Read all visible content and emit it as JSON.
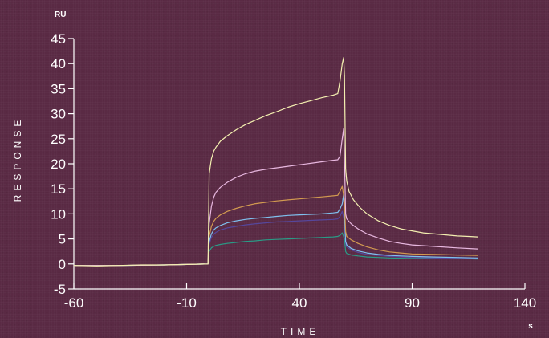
{
  "chart_data": {
    "type": "line",
    "y_unit": "RU",
    "x_unit": "s",
    "xlabel": "TIME",
    "ylabel": "RESPONSE",
    "xlim": [
      -60,
      140
    ],
    "ylim": [
      -5,
      45
    ],
    "x_ticks": [
      "-60",
      "-10",
      "40",
      "90",
      "140"
    ],
    "y_ticks": [
      "-5",
      "0",
      "5",
      "10",
      "15",
      "20",
      "25",
      "30",
      "35",
      "40",
      "45"
    ],
    "grid": false,
    "series": [
      {
        "color": "#f3efb0",
        "points": [
          [
            -60,
            -0.3
          ],
          [
            -50,
            -0.4
          ],
          [
            -40,
            -0.3
          ],
          [
            -30,
            -0.2
          ],
          [
            -20,
            -0.2
          ],
          [
            -10,
            -0.1
          ],
          [
            -0.5,
            0
          ],
          [
            0,
            18
          ],
          [
            1,
            21
          ],
          [
            2,
            22.5
          ],
          [
            3,
            23.3
          ],
          [
            5,
            24.5
          ],
          [
            8,
            25.6
          ],
          [
            12,
            26.8
          ],
          [
            16,
            27.8
          ],
          [
            20,
            28.6
          ],
          [
            25,
            29.6
          ],
          [
            30,
            30.4
          ],
          [
            35,
            31.3
          ],
          [
            40,
            32
          ],
          [
            45,
            32.6
          ],
          [
            50,
            33.2
          ],
          [
            55,
            33.7
          ],
          [
            57,
            34
          ],
          [
            58,
            36.5
          ],
          [
            59,
            40
          ],
          [
            59.6,
            41.2
          ],
          [
            60,
            37.5
          ],
          [
            60.5,
            19
          ],
          [
            61,
            16.5
          ],
          [
            62,
            14.5
          ],
          [
            64,
            12.8
          ],
          [
            67,
            11.2
          ],
          [
            70,
            10
          ],
          [
            75,
            8.6
          ],
          [
            80,
            7.7
          ],
          [
            85,
            7
          ],
          [
            90,
            6.6
          ],
          [
            95,
            6.2
          ],
          [
            100,
            6
          ],
          [
            105,
            5.8
          ],
          [
            110,
            5.6
          ],
          [
            115,
            5.5
          ],
          [
            119,
            5.4
          ]
        ]
      },
      {
        "color": "#e8b8e0",
        "points": [
          [
            -60,
            -0.3
          ],
          [
            -40,
            -0.3
          ],
          [
            -20,
            -0.2
          ],
          [
            -0.5,
            0
          ],
          [
            0,
            8
          ],
          [
            1,
            11.5
          ],
          [
            2,
            13.3
          ],
          [
            3,
            14.3
          ],
          [
            5,
            15.3
          ],
          [
            8,
            16.3
          ],
          [
            12,
            17.3
          ],
          [
            16,
            18
          ],
          [
            20,
            18.5
          ],
          [
            25,
            18.9
          ],
          [
            30,
            19.2
          ],
          [
            35,
            19.5
          ],
          [
            40,
            19.8
          ],
          [
            45,
            20.1
          ],
          [
            50,
            20.4
          ],
          [
            55,
            20.7
          ],
          [
            57,
            20.8
          ],
          [
            58,
            21.5
          ],
          [
            59,
            25
          ],
          [
            59.6,
            27
          ],
          [
            60,
            21
          ],
          [
            60.5,
            10
          ],
          [
            61,
            9
          ],
          [
            63,
            8
          ],
          [
            66,
            7
          ],
          [
            70,
            6
          ],
          [
            75,
            5.2
          ],
          [
            80,
            4.5
          ],
          [
            85,
            4.1
          ],
          [
            90,
            3.8
          ],
          [
            100,
            3.5
          ],
          [
            110,
            3.2
          ],
          [
            119,
            3
          ]
        ]
      },
      {
        "color": "#d29a50",
        "points": [
          [
            -60,
            -0.3
          ],
          [
            -40,
            -0.3
          ],
          [
            -20,
            -0.2
          ],
          [
            -0.5,
            0
          ],
          [
            0,
            5.5
          ],
          [
            1,
            7.5
          ],
          [
            2,
            8.5
          ],
          [
            3,
            9.1
          ],
          [
            5,
            9.8
          ],
          [
            8,
            10.5
          ],
          [
            12,
            11.1
          ],
          [
            16,
            11.6
          ],
          [
            20,
            12
          ],
          [
            25,
            12.3
          ],
          [
            30,
            12.6
          ],
          [
            35,
            12.8
          ],
          [
            40,
            13
          ],
          [
            45,
            13.2
          ],
          [
            50,
            13.4
          ],
          [
            55,
            13.6
          ],
          [
            57,
            13.7
          ],
          [
            58,
            14.5
          ],
          [
            59,
            15.5
          ],
          [
            60,
            12.5
          ],
          [
            60.5,
            6.5
          ],
          [
            61,
            5.5
          ],
          [
            63,
            4.8
          ],
          [
            66,
            4.1
          ],
          [
            70,
            3.4
          ],
          [
            75,
            2.8
          ],
          [
            80,
            2.4
          ],
          [
            85,
            2.2
          ],
          [
            90,
            2
          ],
          [
            100,
            1.9
          ],
          [
            110,
            1.8
          ],
          [
            119,
            1.7
          ]
        ]
      },
      {
        "color": "#7fc0ee",
        "points": [
          [
            -60,
            -0.3
          ],
          [
            -40,
            -0.3
          ],
          [
            -20,
            -0.2
          ],
          [
            -0.5,
            0
          ],
          [
            0,
            4.5
          ],
          [
            1,
            6
          ],
          [
            2,
            6.8
          ],
          [
            3,
            7.2
          ],
          [
            5,
            7.7
          ],
          [
            8,
            8.2
          ],
          [
            12,
            8.6
          ],
          [
            16,
            8.9
          ],
          [
            20,
            9.1
          ],
          [
            25,
            9.3
          ],
          [
            30,
            9.5
          ],
          [
            35,
            9.7
          ],
          [
            40,
            9.8
          ],
          [
            45,
            9.9
          ],
          [
            50,
            10
          ],
          [
            55,
            10.2
          ],
          [
            57,
            10.3
          ],
          [
            58,
            11
          ],
          [
            59,
            12
          ],
          [
            59.6,
            14
          ],
          [
            60,
            10
          ],
          [
            60.5,
            4.5
          ],
          [
            61,
            3.8
          ],
          [
            63,
            3.1
          ],
          [
            66,
            2.6
          ],
          [
            70,
            2.2
          ],
          [
            75,
            1.9
          ],
          [
            80,
            1.7
          ],
          [
            90,
            1.5
          ],
          [
            100,
            1.4
          ],
          [
            110,
            1.3
          ],
          [
            119,
            1.2
          ]
        ]
      },
      {
        "color": "#56479c",
        "points": [
          [
            -60,
            -0.3
          ],
          [
            -40,
            -0.3
          ],
          [
            -20,
            -0.2
          ],
          [
            -0.5,
            0
          ],
          [
            0,
            4
          ],
          [
            1,
            5.3
          ],
          [
            2,
            5.9
          ],
          [
            3,
            6.3
          ],
          [
            5,
            6.8
          ],
          [
            8,
            7.2
          ],
          [
            12,
            7.5
          ],
          [
            16,
            7.8
          ],
          [
            20,
            8
          ],
          [
            25,
            8.2
          ],
          [
            30,
            8.4
          ],
          [
            35,
            8.5
          ],
          [
            40,
            8.6
          ],
          [
            45,
            8.7
          ],
          [
            50,
            8.8
          ],
          [
            55,
            8.9
          ],
          [
            57,
            9
          ],
          [
            58,
            9.5
          ],
          [
            59,
            10.5
          ],
          [
            60,
            8.5
          ],
          [
            60.5,
            4
          ],
          [
            61,
            3.4
          ],
          [
            63,
            2.8
          ],
          [
            66,
            2.3
          ],
          [
            70,
            1.9
          ],
          [
            75,
            1.7
          ],
          [
            80,
            1.5
          ],
          [
            90,
            1.3
          ],
          [
            100,
            1.2
          ],
          [
            110,
            1.1
          ],
          [
            119,
            1.1
          ]
        ]
      },
      {
        "color": "#2a9b86",
        "points": [
          [
            -60,
            -0.3
          ],
          [
            -40,
            -0.3
          ],
          [
            -20,
            -0.2
          ],
          [
            -0.5,
            0
          ],
          [
            0,
            2.5
          ],
          [
            1,
            3.2
          ],
          [
            2,
            3.5
          ],
          [
            3,
            3.7
          ],
          [
            5,
            3.9
          ],
          [
            8,
            4.1
          ],
          [
            12,
            4.3
          ],
          [
            16,
            4.5
          ],
          [
            20,
            4.6
          ],
          [
            25,
            4.8
          ],
          [
            30,
            4.9
          ],
          [
            35,
            5
          ],
          [
            40,
            5.1
          ],
          [
            45,
            5.2
          ],
          [
            50,
            5.3
          ],
          [
            55,
            5.4
          ],
          [
            57,
            5.5
          ],
          [
            58,
            5.7
          ],
          [
            59,
            6.2
          ],
          [
            60,
            5
          ],
          [
            60.5,
            2.5
          ],
          [
            61,
            2.1
          ],
          [
            63,
            1.8
          ],
          [
            66,
            1.6
          ],
          [
            70,
            1.4
          ],
          [
            75,
            1.3
          ],
          [
            80,
            1.2
          ],
          [
            90,
            1.1
          ],
          [
            100,
            1.1
          ],
          [
            110,
            1.1
          ],
          [
            119,
            1
          ]
        ]
      }
    ]
  }
}
